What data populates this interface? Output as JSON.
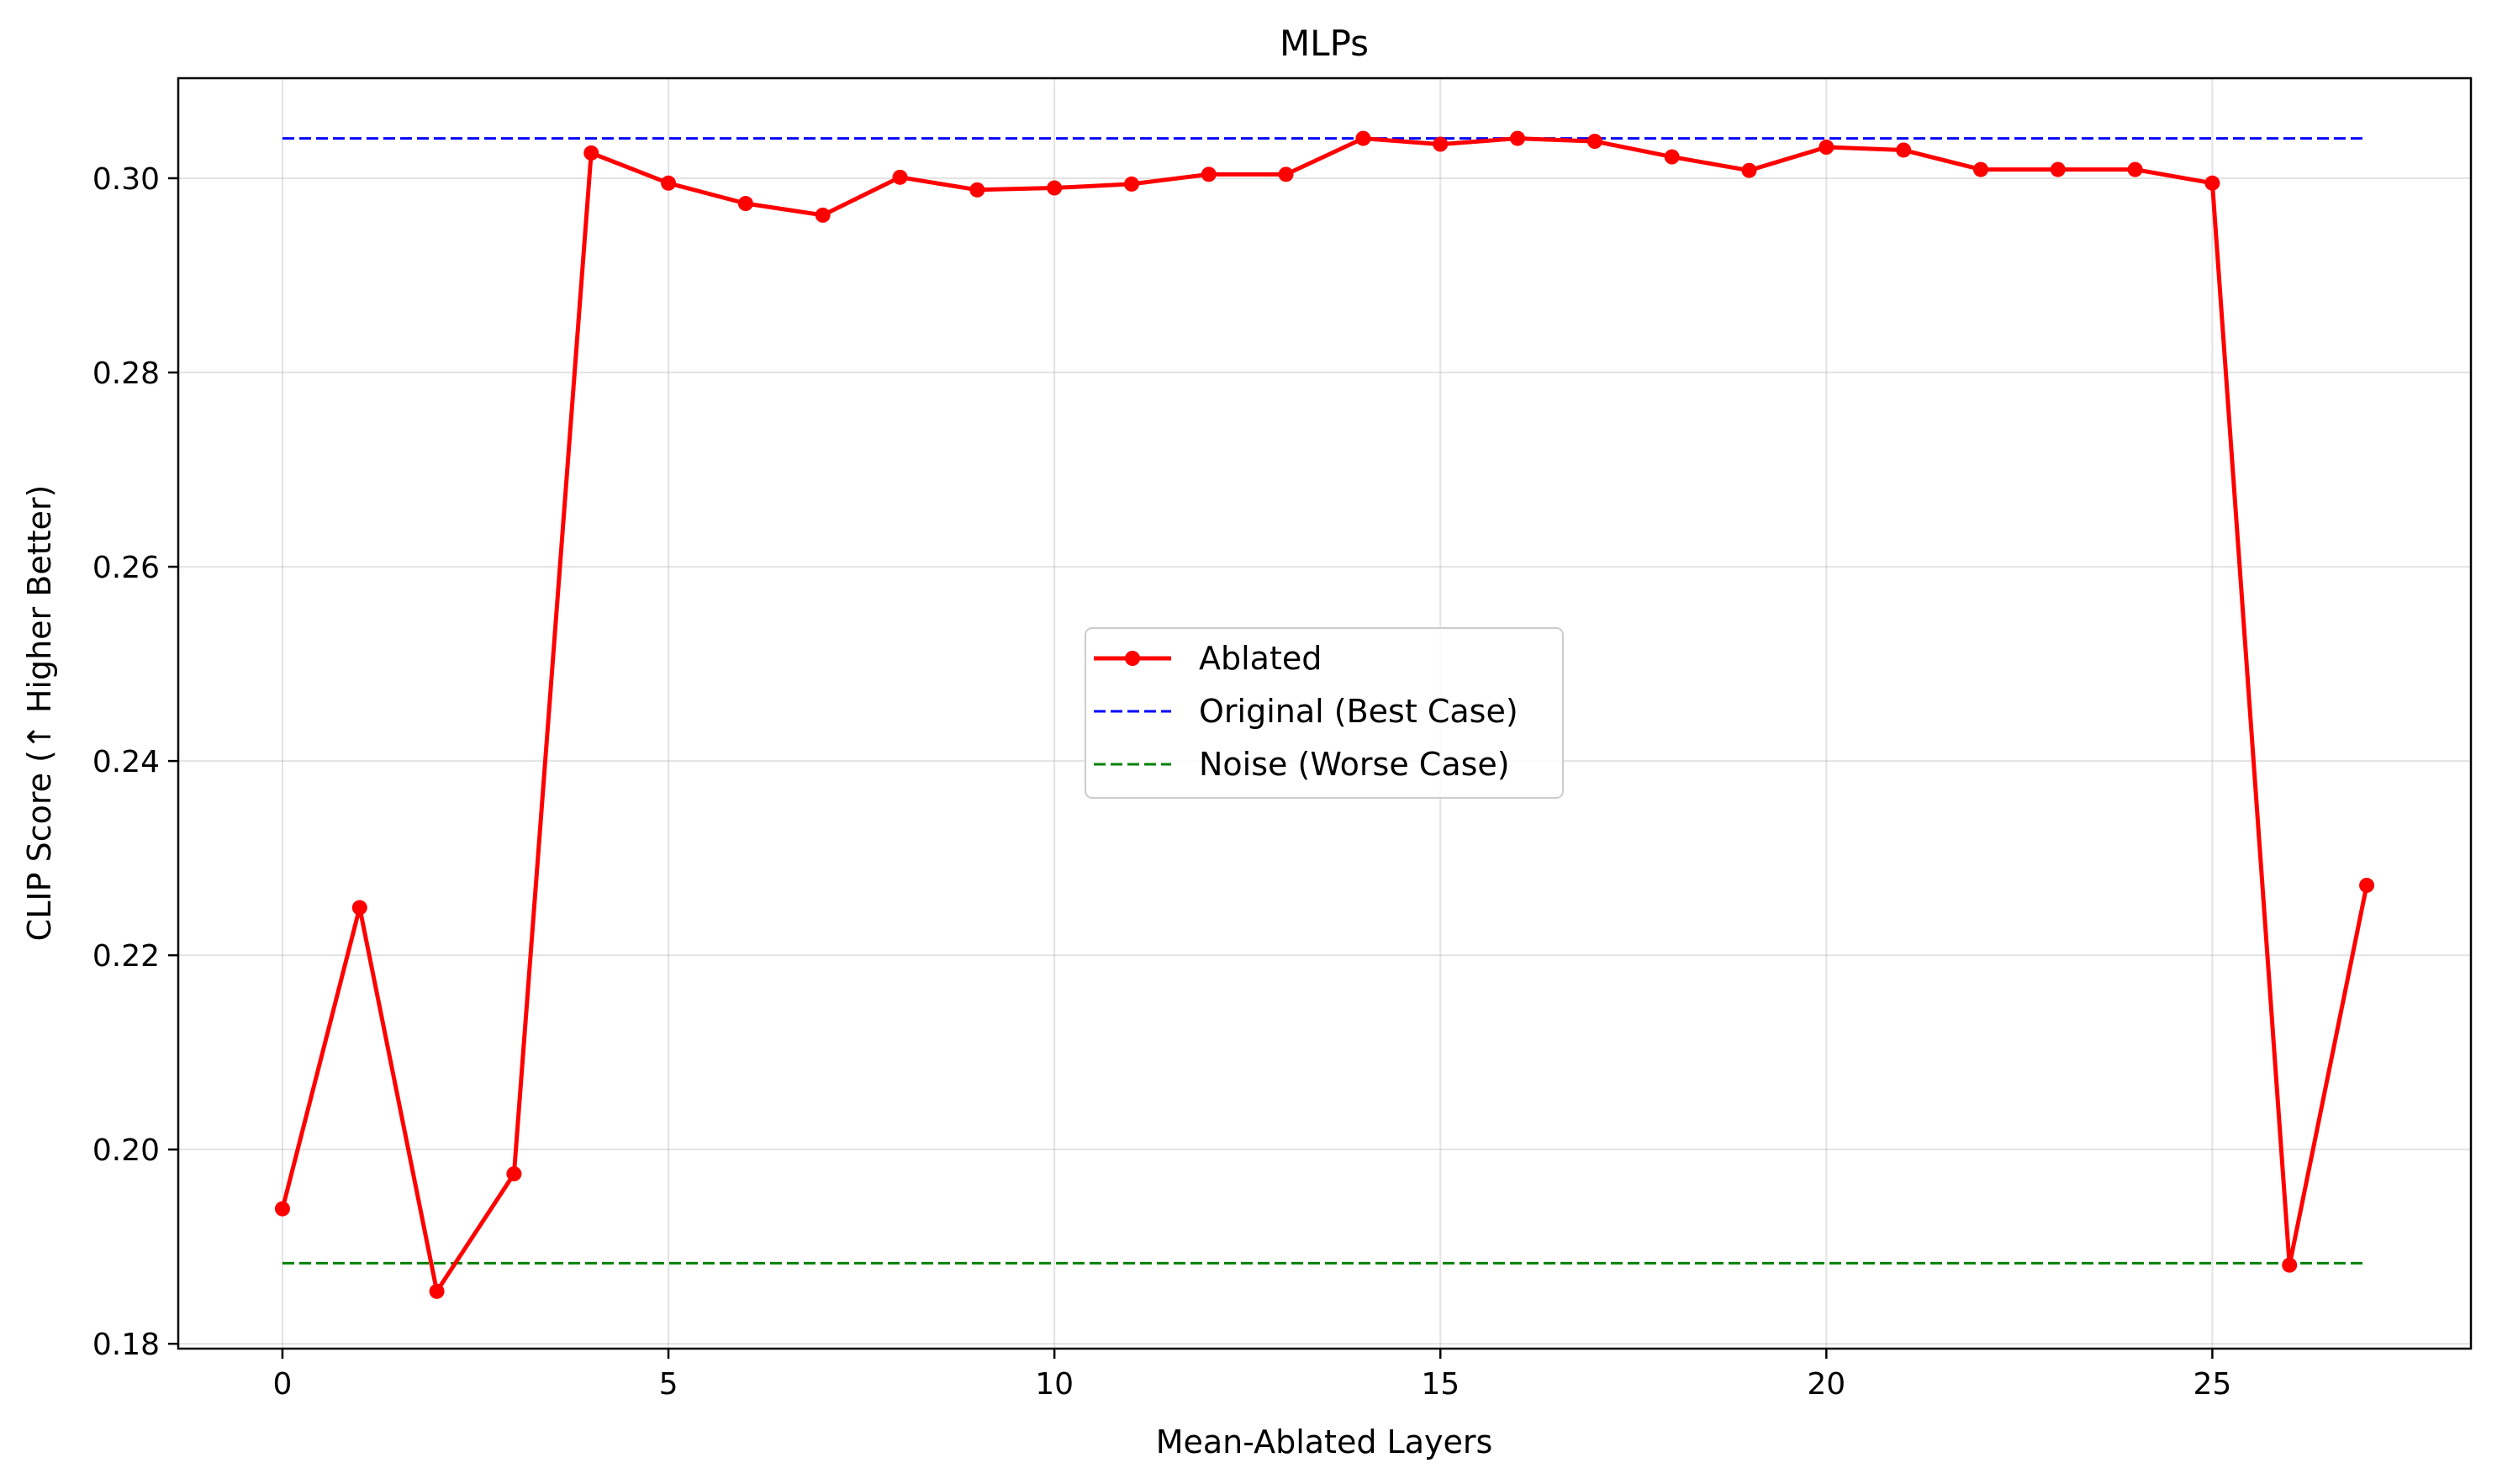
{
  "chart_data": {
    "type": "line",
    "title": "MLPs",
    "xlabel": "Mean-Ablated Layers",
    "ylabel": "CLIP Score (↑ Higher Better)",
    "xlim": [
      -1.35,
      28.35
    ],
    "ylim": [
      0.1795,
      0.3103
    ],
    "xticks": [
      0,
      5,
      10,
      15,
      20,
      25
    ],
    "xtick_labels": [
      "0",
      "5",
      "10",
      "15",
      "20",
      "25"
    ],
    "yticks": [
      0.18,
      0.2,
      0.22,
      0.24,
      0.26,
      0.28,
      0.3
    ],
    "ytick_labels": [
      "0.18",
      "0.20",
      "0.22",
      "0.24",
      "0.26",
      "0.28",
      "0.30"
    ],
    "grid": true,
    "legend_position": "center",
    "x": [
      0,
      1,
      2,
      3,
      4,
      5,
      6,
      7,
      8,
      9,
      10,
      11,
      12,
      13,
      14,
      15,
      16,
      17,
      18,
      19,
      20,
      21,
      22,
      23,
      24,
      25,
      26,
      27
    ],
    "series": [
      {
        "name": "Ablated",
        "color": "#ff0000",
        "style": "solid-markers",
        "values": [
          0.1939,
          0.2249,
          0.1854,
          0.1975,
          0.3026,
          0.2995,
          0.2974,
          0.2962,
          0.3001,
          0.2988,
          0.299,
          0.2994,
          0.3004,
          0.3004,
          0.3041,
          0.3035,
          0.3041,
          0.3038,
          0.3022,
          0.3008,
          0.3032,
          0.3029,
          0.3009,
          0.3009,
          0.3009,
          0.2995,
          0.1881,
          0.2272
        ]
      },
      {
        "name": "Original (Best Case)",
        "color": "#0000ff",
        "style": "dashed",
        "x_range": [
          0,
          27
        ],
        "value": 0.3041
      },
      {
        "name": "Noise (Worse Case)",
        "color": "#008000",
        "style": "dashed",
        "x_range": [
          0,
          27
        ],
        "value": 0.1883
      }
    ]
  }
}
